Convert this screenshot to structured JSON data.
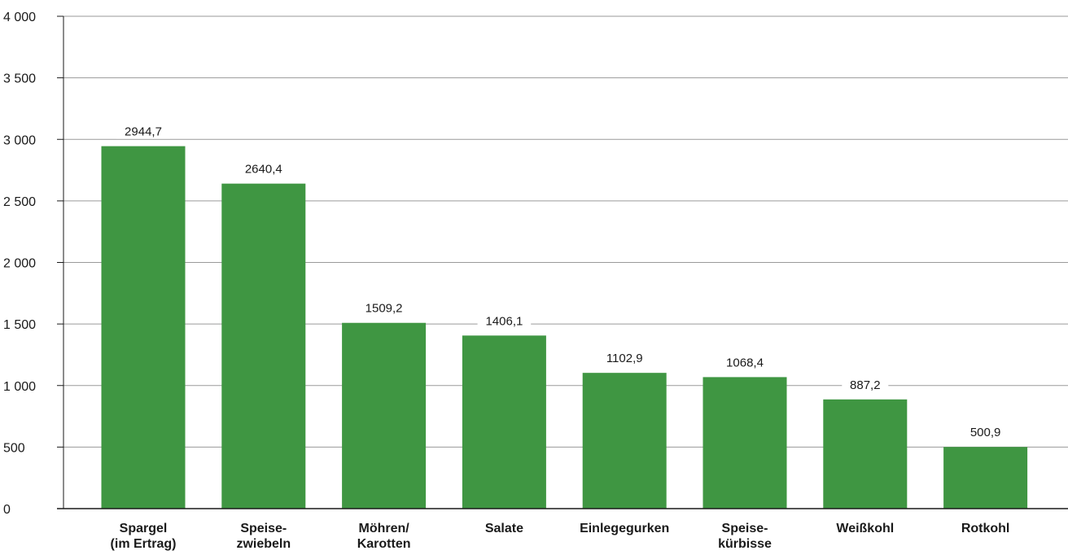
{
  "chart_data": {
    "type": "bar",
    "categories": [
      [
        "Spargel",
        "(im Ertrag)"
      ],
      [
        "Speise-",
        "zwiebeln"
      ],
      [
        "Möhren/",
        "Karotten"
      ],
      [
        "Salate"
      ],
      [
        "Einlegegurken"
      ],
      [
        "Speise-",
        "kürbisse"
      ],
      [
        "Weißkohl"
      ],
      [
        "Rotkohl"
      ]
    ],
    "values": [
      2944.7,
      2640.4,
      1509.2,
      1406.1,
      1102.9,
      1068.4,
      887.2,
      500.9
    ],
    "value_labels": [
      "2944,7",
      "2640,4",
      "1509,2",
      "1406,1",
      "1102,9",
      "1068,4",
      "887,2",
      "500,9"
    ],
    "ylim": [
      0,
      4000
    ],
    "yticks": [
      0,
      500,
      1000,
      1500,
      2000,
      2500,
      3000,
      3500,
      4000
    ],
    "ytick_labels": [
      "0",
      "500",
      "1 000",
      "1 500",
      "2 000",
      "2 500",
      "3 000",
      "3 500",
      "4 000"
    ],
    "grid": true,
    "bar_color": "#3f9642",
    "grid_color": "#9a9a9a",
    "axis_color": "#1a1a1a"
  }
}
